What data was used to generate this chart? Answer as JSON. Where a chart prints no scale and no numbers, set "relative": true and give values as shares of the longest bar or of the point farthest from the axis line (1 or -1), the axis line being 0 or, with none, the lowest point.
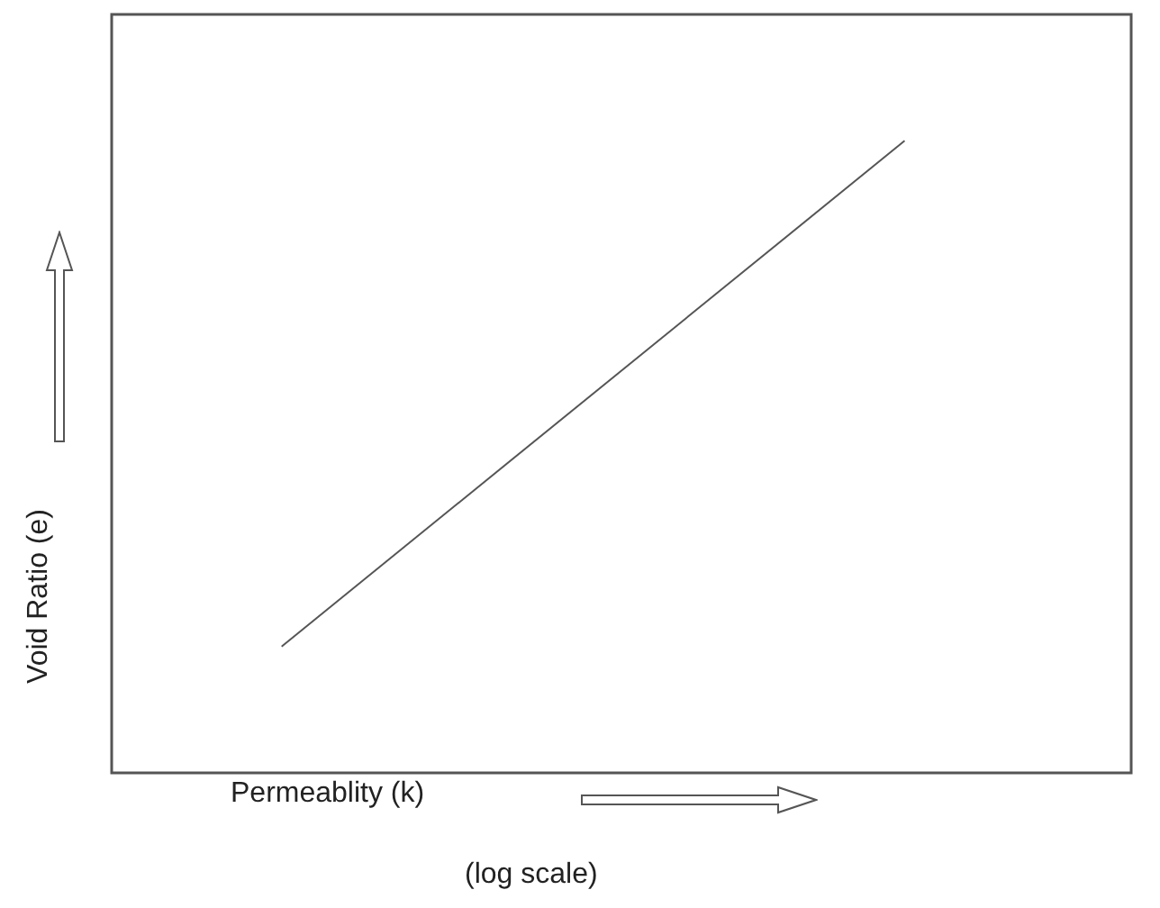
{
  "chart_data": {
    "type": "line",
    "relative": true,
    "xlabel": "Permeablity (k)",
    "ylabel": "Void Ratio (e)",
    "annotations": [
      "(log scale)"
    ],
    "categories": [
      null,
      null,
      null,
      null,
      null,
      null,
      null,
      null,
      null,
      null,
      null,
      null,
      null,
      null,
      null,
      null,
      null,
      null,
      null
    ],
    "series": [
      {
        "color": "#555555",
        "values": [
          null,
          null,
          null,
          0.2,
          null,
          null,
          null,
          null,
          null,
          null,
          null,
          null,
          null,
          null,
          1,
          null,
          null,
          null,
          null
        ]
      }
    ],
    "legend": false,
    "marker": "none",
    "line_style": "solid",
    "tick_labels": false
  }
}
